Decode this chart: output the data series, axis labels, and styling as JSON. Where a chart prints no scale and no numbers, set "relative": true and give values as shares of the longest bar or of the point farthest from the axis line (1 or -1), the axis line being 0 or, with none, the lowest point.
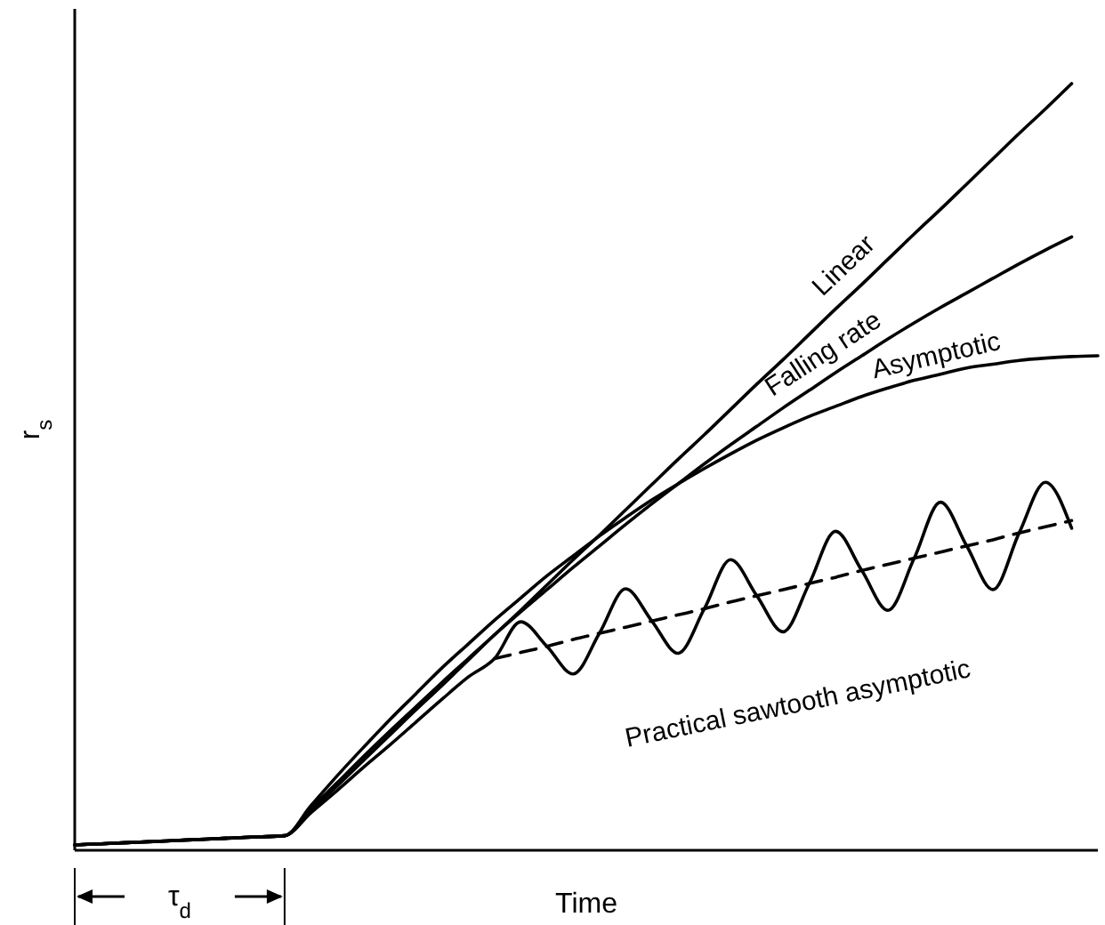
{
  "chart_data": {
    "type": "line",
    "relative": true,
    "xlabel": "Time",
    "ylabel": "r$_{s}$",
    "annotations": [
      "τ$_{d}$"
    ],
    "marker": "none",
    "categories": [
      null,
      null,
      null,
      null,
      null,
      null,
      null,
      null,
      null,
      null,
      null,
      null,
      null,
      null,
      null,
      null,
      null,
      null,
      null,
      null,
      null,
      null,
      null,
      null,
      null,
      null,
      null,
      null,
      null,
      null,
      null,
      null,
      null,
      null,
      null,
      null,
      null,
      null,
      null,
      null
    ],
    "series": [
      {
        "name": "Linear",
        "color": "#000000",
        "line_style": "solid",
        "values": [
          0.007,
          0.0085,
          0.01,
          0.0115,
          0.013,
          0.0145,
          0.016,
          0.0175,
          0.019,
          0.052,
          0.084,
          0.117,
          0.15,
          0.183,
          0.215,
          0.248,
          0.281,
          0.313,
          0.346,
          0.379,
          0.411,
          0.444,
          0.477,
          0.51,
          0.542,
          0.575,
          0.608,
          0.64,
          0.673,
          0.706,
          0.738,
          0.771,
          0.804,
          0.836,
          0.869,
          0.902,
          0.935,
          0.967,
          1.0,
          null
        ]
      },
      {
        "name": "Falling rate",
        "color": "#000000",
        "line_style": "solid",
        "values": [
          0.007,
          0.0085,
          0.01,
          0.0115,
          0.013,
          0.0145,
          0.016,
          0.0175,
          0.019,
          0.054,
          0.088,
          0.122,
          0.155,
          0.187,
          0.219,
          0.25,
          0.281,
          0.311,
          0.34,
          0.369,
          0.397,
          0.425,
          0.452,
          0.478,
          0.504,
          0.529,
          0.553,
          0.577,
          0.6,
          0.623,
          0.645,
          0.667,
          0.688,
          0.708,
          0.727,
          0.746,
          0.765,
          0.783,
          0.8,
          null
        ]
      },
      {
        "name": "Asymptotic",
        "color": "#000000",
        "line_style": "solid",
        "values": [
          0.007,
          0.0085,
          0.01,
          0.0115,
          0.013,
          0.0145,
          0.016,
          0.0175,
          0.019,
          0.058,
          0.097,
          0.134,
          0.17,
          0.204,
          0.238,
          0.269,
          0.3,
          0.329,
          0.358,
          0.384,
          0.41,
          0.434,
          0.457,
          0.478,
          0.498,
          0.517,
          0.535,
          0.551,
          0.566,
          0.579,
          0.592,
          0.603,
          0.613,
          0.621,
          0.629,
          0.634,
          0.639,
          0.642,
          0.644,
          0.645
        ]
      },
      {
        "name": "Practical sawtooth asymptotic",
        "color": "#000000",
        "line_style": "solid",
        "values": [
          0.007,
          0.0085,
          0.01,
          0.0115,
          0.013,
          0.0145,
          0.016,
          0.0175,
          0.019,
          0.049,
          0.078,
          0.108,
          0.137,
          0.167,
          0.197,
          0.226,
          0.25,
          0.298,
          0.266,
          0.23,
          0.283,
          0.341,
          0.299,
          0.257,
          0.315,
          0.379,
          0.332,
          0.285,
          0.348,
          0.416,
          0.365,
          0.313,
          0.381,
          0.454,
          0.397,
          0.34,
          0.414,
          0.48,
          0.42,
          null
        ]
      },
      {
        "color": "#000000",
        "line_style": "dashed",
        "values": [
          null,
          null,
          null,
          null,
          null,
          null,
          null,
          null,
          null,
          null,
          null,
          null,
          null,
          null,
          null,
          null,
          0.25,
          0.258,
          0.266,
          0.275,
          0.283,
          0.291,
          0.299,
          0.307,
          0.315,
          0.324,
          0.332,
          0.34,
          0.348,
          0.356,
          0.365,
          0.373,
          0.381,
          0.389,
          0.397,
          0.405,
          0.414,
          0.422,
          0.43,
          null
        ]
      }
    ]
  }
}
